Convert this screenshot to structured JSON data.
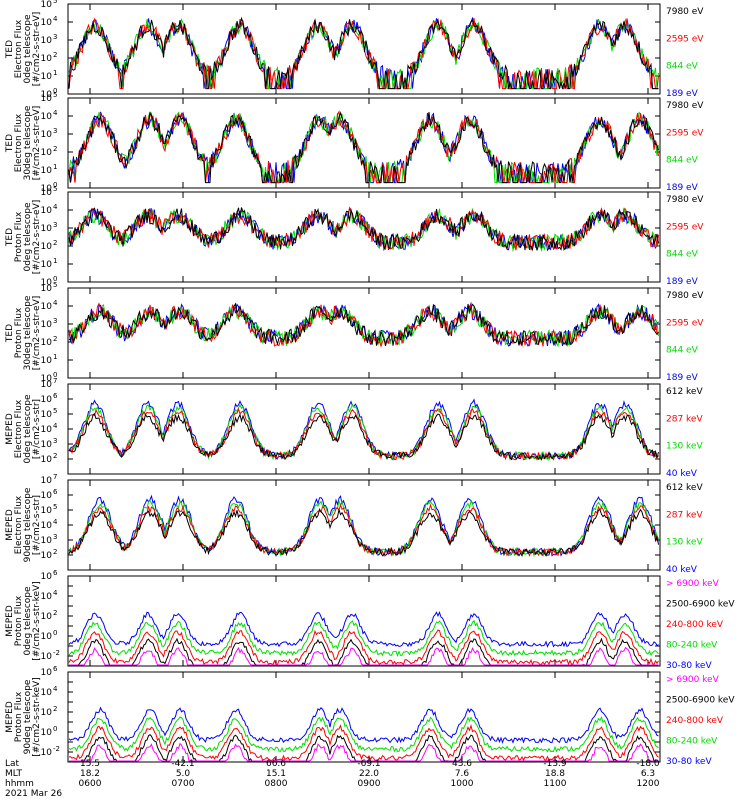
{
  "chart_data": [
    {
      "type": "line",
      "ylabel": [
        "TED",
        "Electron Flux",
        "0deg telescope",
        "[#/cm2-s-str-eV]"
      ],
      "yscale": "log",
      "ylim_exp": [
        0,
        5
      ],
      "series": [
        {
          "name": "7980 eV",
          "color": "#000000"
        },
        {
          "name": "2595 eV",
          "color": "#ff0000"
        },
        {
          "name": "844 eV",
          "color": "#00dd00"
        },
        {
          "name": "189 eV",
          "color": "#0000ff"
        }
      ]
    },
    {
      "type": "line",
      "ylabel": [
        "TED",
        "Electron Flux",
        "30deg telescope",
        "[#/cm2-s-str-eV]"
      ],
      "yscale": "log",
      "ylim_exp": [
        0,
        5
      ],
      "series": [
        {
          "name": "7980 eV",
          "color": "#000000"
        },
        {
          "name": "2595 eV",
          "color": "#ff0000"
        },
        {
          "name": "844 eV",
          "color": "#00dd00"
        },
        {
          "name": "189 eV",
          "color": "#0000ff"
        }
      ]
    },
    {
      "type": "line",
      "ylabel": [
        "TED",
        "Proton Flux",
        "0deg telescope",
        "[#/cm2-s-str-eV]"
      ],
      "yscale": "log",
      "ylim_exp": [
        0,
        5
      ],
      "series": [
        {
          "name": "7980 eV",
          "color": "#000000"
        },
        {
          "name": "2595 eV",
          "color": "#ff0000"
        },
        {
          "name": "844 eV",
          "color": "#00dd00"
        },
        {
          "name": "189 eV",
          "color": "#0000ff"
        }
      ]
    },
    {
      "type": "line",
      "ylabel": [
        "TED",
        "Proton Flux",
        "30deg telescope",
        "[#/cm2-s-str-eV]"
      ],
      "yscale": "log",
      "ylim_exp": [
        0,
        5
      ],
      "series": [
        {
          "name": "7980 eV",
          "color": "#000000"
        },
        {
          "name": "2595 eV",
          "color": "#ff0000"
        },
        {
          "name": "844 eV",
          "color": "#00dd00"
        },
        {
          "name": "189 eV",
          "color": "#0000ff"
        }
      ]
    },
    {
      "type": "line",
      "ylabel": [
        "MEPED",
        "Electron Flux",
        "0deg telescope",
        "[#/cm2-s-str]"
      ],
      "yscale": "log",
      "ylim_exp": [
        1,
        7
      ],
      "series": [
        {
          "name": "612 keV",
          "color": "#000000"
        },
        {
          "name": "287 keV",
          "color": "#ff0000"
        },
        {
          "name": "130 keV",
          "color": "#00dd00"
        },
        {
          "name": "40 keV",
          "color": "#0000ff"
        }
      ]
    },
    {
      "type": "line",
      "ylabel": [
        "MEPED",
        "Electron Flux",
        "90deg telescope",
        "[#/cm2-s-str]"
      ],
      "yscale": "log",
      "ylim_exp": [
        1,
        7
      ],
      "series": [
        {
          "name": "612 keV",
          "color": "#000000"
        },
        {
          "name": "287 keV",
          "color": "#ff0000"
        },
        {
          "name": "130 keV",
          "color": "#00dd00"
        },
        {
          "name": "40 keV",
          "color": "#0000ff"
        }
      ]
    },
    {
      "type": "line",
      "ylabel": [
        "MEPED",
        "Proton Flux",
        "0deg telescope",
        "[#/cm2-s-str-keV]"
      ],
      "yscale": "log",
      "ylim_exp": [
        -3,
        6
      ],
      "series": [
        {
          "name": "> 6900 keV",
          "color": "#ff00ff"
        },
        {
          "name": "2500-6900 keV",
          "color": "#000000"
        },
        {
          "name": "240-800 keV",
          "color": "#ff0000"
        },
        {
          "name": "80-240 keV",
          "color": "#00dd00"
        },
        {
          "name": "30-80 keV",
          "color": "#0000ff"
        }
      ]
    },
    {
      "type": "line",
      "ylabel": [
        "MEPED",
        "Proton Flux",
        "90deg telescope",
        "[#/cm2-s-str-keV]"
      ],
      "yscale": "log",
      "ylim_exp": [
        -3,
        6
      ],
      "series": [
        {
          "name": "> 6900 keV",
          "color": "#ff00ff"
        },
        {
          "name": "2500-6900 keV",
          "color": "#000000"
        },
        {
          "name": "240-800 keV",
          "color": "#ff0000"
        },
        {
          "name": "80-240 keV",
          "color": "#00dd00"
        },
        {
          "name": "30-80 keV",
          "color": "#0000ff"
        }
      ]
    }
  ],
  "xaxis": {
    "row_labels": [
      "Lat",
      "MLT",
      "hhmm",
      "2021 Mar 26"
    ],
    "ticks": [
      {
        "lat": "15.5",
        "mlt": "18.2",
        "hhmm": "0600"
      },
      {
        "lat": "-42.1",
        "mlt": "5.0",
        "hhmm": "0700"
      },
      {
        "lat": "66.6",
        "mlt": "15.1",
        "hhmm": "0800"
      },
      {
        "lat": "-69.1",
        "mlt": "22.0",
        "hhmm": "0900"
      },
      {
        "lat": "43.6",
        "mlt": "7.6",
        "hhmm": "1000"
      },
      {
        "lat": "-13.9",
        "mlt": "18.8",
        "hhmm": "1100"
      },
      {
        "lat": "-18.0",
        "mlt": "6.3",
        "hhmm": "1200"
      }
    ]
  }
}
